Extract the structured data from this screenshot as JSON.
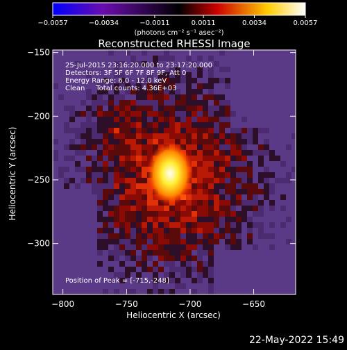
{
  "chart_data": {
    "type": "heatmap",
    "title": "Reconstructed RHESSI Image",
    "xlabel": "Heliocentric X (arcsec)",
    "ylabel": "Heliocentric Y (arcsec)",
    "xlim": [
      -808,
      -617
    ],
    "ylim": [
      -340,
      -148
    ],
    "x_ticks": [
      -800,
      -750,
      -700,
      -650
    ],
    "x_tick_labels": [
      "−800",
      "−750",
      "−700",
      "−650"
    ],
    "y_ticks": [
      -150,
      -200,
      -250,
      -300
    ],
    "y_tick_labels": [
      "−150",
      "−200",
      "−250",
      "−300"
    ],
    "colorbar": {
      "ticks": [
        -0.0057,
        -0.0034,
        -0.0011,
        0.0011,
        0.0034,
        0.0057
      ],
      "tick_labels": [
        "−0.0057",
        "−0.0034",
        "−0.0011",
        "0.0011",
        "0.0034",
        "0.0057"
      ],
      "unit_label": "(photons cm⁻² s⁻¹ asec⁻²)",
      "colors": [
        "#0000ff",
        "#6a0dad",
        "#000000",
        "#ff0000",
        "#ffff00",
        "#ffffff"
      ]
    },
    "annotations": [
      "25-Jul-2015 23:16:20.000 to 23:17:20.000",
      "Detectors: 3F 5F 6F 7F 8F 9F, Att 0",
      "Energy Range: 6.0 - 12.0 keV",
      "Clean     Total counts: 4.36E+03"
    ],
    "peak_label": "Position of Peak = [-715,-248]",
    "peak": {
      "x": -715,
      "y": -248
    },
    "timestamp": "22-May-2022 15:49"
  }
}
